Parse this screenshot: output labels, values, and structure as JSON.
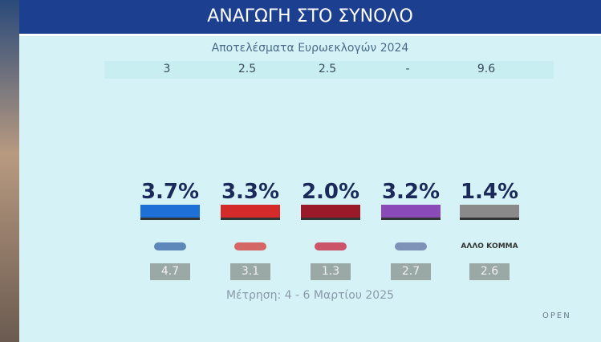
{
  "header": {
    "title": "ΑΝΑΓΩΓΗ ΣΤΟ ΣΥΝΟΛΟ",
    "subtitle": "Αποτελέσματα Ευρωεκλογών 2024"
  },
  "euro_results": [
    "3",
    "2.5",
    "2.5",
    "-",
    "9.6"
  ],
  "parties": [
    {
      "value": "3.7%",
      "previous": "4.7"
    },
    {
      "value": "3.3%",
      "previous": "3.1"
    },
    {
      "value": "2.0%",
      "previous": "1.3"
    },
    {
      "value": "3.2%",
      "previous": "2.7"
    },
    {
      "value": "1.4%",
      "logo": "ΑΛΛΟ ΚΟΜΜΑ",
      "previous": "2.6"
    }
  ],
  "note": "Μέτρηση: 4 - 6 Μαρτίου 2025",
  "brand": "OPEN"
}
